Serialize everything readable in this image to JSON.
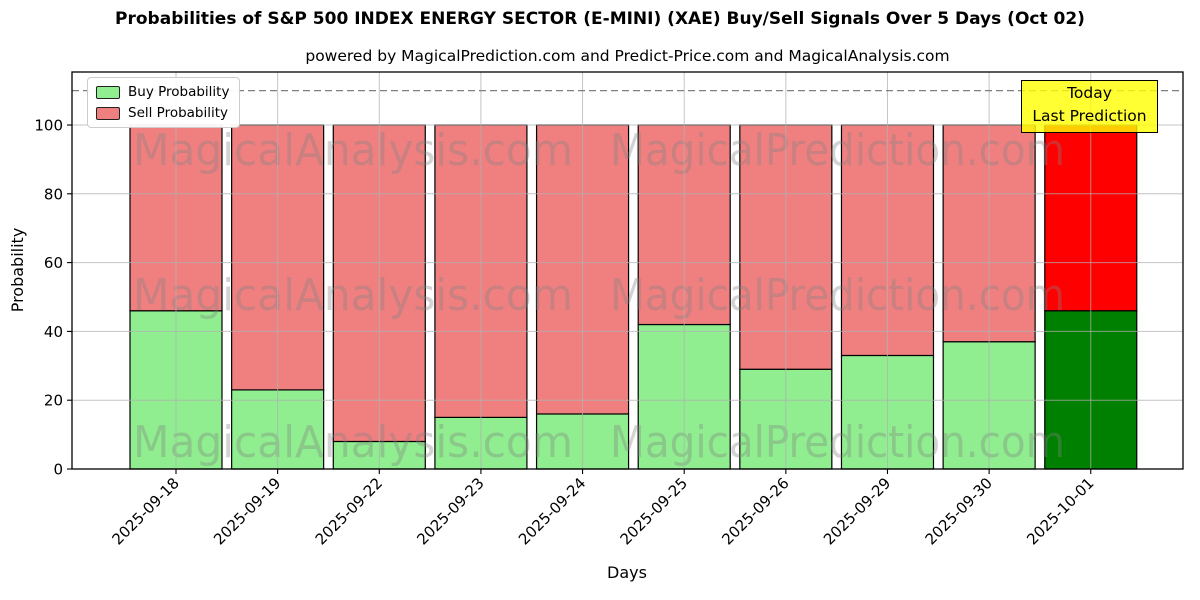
{
  "header": {
    "title": "Probabilities of S&P 500 INDEX ENERGY SECTOR (E-MINI) (XAE) Buy/Sell Signals Over 5 Days (Oct 02)",
    "subtitle": "powered by MagicalPrediction.com and Predict-Price.com and MagicalAnalysis.com"
  },
  "legend": {
    "items": [
      {
        "label": "Buy Probability",
        "color": "#90ee90"
      },
      {
        "label": "Sell Probability",
        "color": "#f08080"
      }
    ]
  },
  "annotation_box": {
    "line1": "Today",
    "line2": "Last Prediction",
    "bg_color": "#ffff00"
  },
  "watermarks": {
    "left_text": "MagicalAnalysis.com",
    "right_text": "MagicalPrediction.com",
    "color": "#808080",
    "opacity": 0.35
  },
  "chart_data": {
    "type": "bar",
    "stacked": true,
    "title": "Probabilities of S&P 500 INDEX ENERGY SECTOR (E-MINI) (XAE) Buy/Sell Signals Over 5 Days (Oct 02)",
    "xlabel": "Days",
    "ylabel": "Probability",
    "categories": [
      "2025-09-18",
      "2025-09-19",
      "2025-09-22",
      "2025-09-23",
      "2025-09-24",
      "2025-09-25",
      "2025-09-26",
      "2025-09-29",
      "2025-09-30",
      "2025-10-01"
    ],
    "series": [
      {
        "name": "Buy Probability",
        "values": [
          46,
          23,
          8,
          15,
          16,
          42,
          29,
          33,
          37,
          46
        ],
        "color": "#90ee90",
        "today_color": "#008000"
      },
      {
        "name": "Sell Probability",
        "values": [
          54,
          77,
          92,
          85,
          84,
          58,
          71,
          67,
          63,
          54
        ],
        "color": "#f08080",
        "today_color": "#ff0000"
      }
    ],
    "today_index": 9,
    "yticks": [
      0,
      20,
      40,
      60,
      80,
      100
    ],
    "ylim": [
      0,
      115
    ],
    "dashed_line_y": 110,
    "grid": true,
    "legend_position": "upper-left",
    "bar_edge_color": "#000000",
    "grid_color": "#b0b0b0",
    "dashed_line_color": "#7f7f7f"
  }
}
